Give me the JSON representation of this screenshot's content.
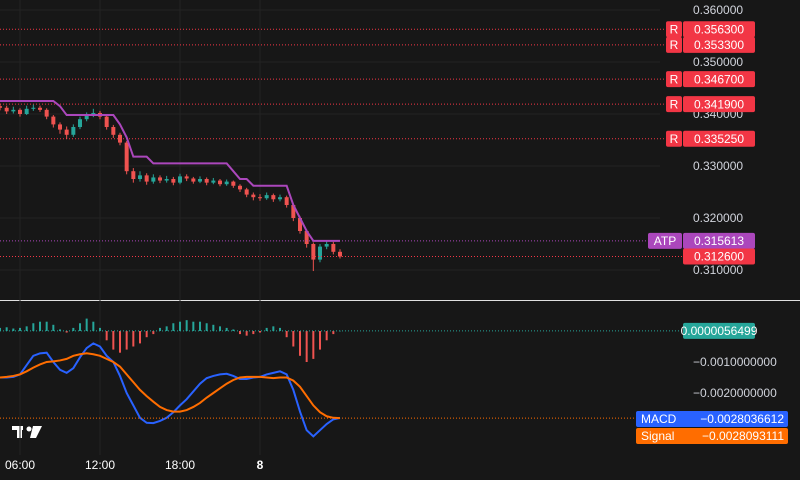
{
  "chart_data": [
    {
      "type": "candlestick",
      "open": [
        0.3415,
        0.3412,
        0.3405,
        0.3408,
        0.34,
        0.341,
        0.3412,
        0.3408,
        0.3395,
        0.338,
        0.337,
        0.336,
        0.3375,
        0.339,
        0.3398,
        0.3402,
        0.3395,
        0.3375,
        0.336,
        0.3345,
        0.329,
        0.3275,
        0.3282,
        0.327,
        0.3278,
        0.3272,
        0.3275,
        0.3268,
        0.328,
        0.3276,
        0.327,
        0.3275,
        0.3268,
        0.3272,
        0.3265,
        0.327,
        0.3262,
        0.3255,
        0.3245,
        0.324,
        0.3238,
        0.3244,
        0.3236,
        0.324,
        0.3225,
        0.32,
        0.3175,
        0.315,
        0.312,
        0.3145,
        0.315,
        0.3135
      ],
      "high": [
        0.342,
        0.3416,
        0.3414,
        0.3411,
        0.3416,
        0.3418,
        0.3416,
        0.3411,
        0.3398,
        0.3384,
        0.3376,
        0.338,
        0.3395,
        0.3403,
        0.341,
        0.3406,
        0.3398,
        0.3379,
        0.3364,
        0.3348,
        0.3296,
        0.329,
        0.3286,
        0.3284,
        0.3282,
        0.3281,
        0.3279,
        0.3285,
        0.3284,
        0.3279,
        0.328,
        0.3278,
        0.3277,
        0.3275,
        0.3274,
        0.3272,
        0.3265,
        0.3258,
        0.3249,
        0.3246,
        0.3249,
        0.3247,
        0.3245,
        0.3243,
        0.3228,
        0.3204,
        0.3178,
        0.3153,
        0.315,
        0.3156,
        0.3154,
        0.314
      ],
      "low": [
        0.3407,
        0.34,
        0.3401,
        0.3395,
        0.3398,
        0.3406,
        0.3404,
        0.339,
        0.3374,
        0.3362,
        0.3352,
        0.3356,
        0.3371,
        0.3386,
        0.3394,
        0.339,
        0.337,
        0.3354,
        0.334,
        0.3284,
        0.3268,
        0.327,
        0.3264,
        0.3266,
        0.3267,
        0.3268,
        0.3263,
        0.3265,
        0.3271,
        0.3266,
        0.3267,
        0.3263,
        0.3265,
        0.3261,
        0.3262,
        0.3258,
        0.325,
        0.324,
        0.3234,
        0.3233,
        0.3235,
        0.3231,
        0.3232,
        0.322,
        0.3194,
        0.317,
        0.3143,
        0.3098,
        0.3115,
        0.314,
        0.313,
        0.3122
      ],
      "close": [
        0.3412,
        0.3405,
        0.3408,
        0.34,
        0.341,
        0.3412,
        0.3408,
        0.3395,
        0.338,
        0.337,
        0.336,
        0.3375,
        0.339,
        0.3398,
        0.3402,
        0.3395,
        0.3375,
        0.336,
        0.3345,
        0.329,
        0.3275,
        0.3282,
        0.327,
        0.3278,
        0.3272,
        0.3275,
        0.3268,
        0.328,
        0.3276,
        0.327,
        0.3275,
        0.3268,
        0.3272,
        0.3265,
        0.327,
        0.3262,
        0.3255,
        0.3245,
        0.324,
        0.3238,
        0.3244,
        0.3236,
        0.324,
        0.3225,
        0.32,
        0.3175,
        0.315,
        0.312,
        0.3145,
        0.315,
        0.3135,
        0.3126
      ],
      "up_color": "#26a69a",
      "down_color": "#ef5350",
      "last_label": "0.312600",
      "last_color": "#f23645",
      "xlim": [
        0,
        96
      ],
      "xticks": [
        {
          "value": 3,
          "label": "06:00"
        },
        {
          "value": 15,
          "label": "12:00"
        },
        {
          "value": 27,
          "label": "18:00"
        },
        {
          "value": 39,
          "label": "8"
        }
      ],
      "ylim": [
        0.304231,
        0.361923
      ],
      "yticks": [
        {
          "value": 0.36,
          "label": "0.360000"
        },
        {
          "value": 0.35,
          "label": "0.350000"
        },
        {
          "value": 0.34,
          "label": "0.340000"
        },
        {
          "value": 0.33,
          "label": "0.330000"
        },
        {
          "value": 0.32,
          "label": "0.320000"
        },
        {
          "value": 0.31,
          "label": "0.310000"
        }
      ],
      "grid": true,
      "series": [
        {
          "name": "ATP",
          "color": "#ab47bc",
          "values": [
            0.3425,
            0.3425,
            0.3425,
            0.3425,
            0.3425,
            0.3425,
            0.3425,
            0.3425,
            0.3425,
            0.3415,
            0.3398,
            0.3398,
            0.3398,
            0.3398,
            0.3398,
            0.3398,
            0.3398,
            0.3398,
            0.338,
            0.3355,
            0.3318,
            0.3318,
            0.3318,
            0.3305,
            0.3305,
            0.3305,
            0.3305,
            0.3305,
            0.3305,
            0.3305,
            0.3305,
            0.3305,
            0.3305,
            0.3305,
            0.3305,
            0.329,
            0.3275,
            0.3275,
            0.3262,
            0.3262,
            0.3262,
            0.3262,
            0.3262,
            0.3262,
            0.3225,
            0.32,
            0.3175,
            0.315613,
            0.315613,
            0.315613,
            0.315613,
            0.315613
          ],
          "last_label": "0.315613"
        }
      ],
      "levels": {
        "tag": "R",
        "color": "#f23645",
        "values": [
          0.3563,
          0.3533,
          0.3467,
          0.3419,
          0.33525
        ],
        "value_labels": [
          "0.356300",
          "0.353300",
          "0.346700",
          "0.341900",
          "0.335250"
        ]
      }
    },
    {
      "type": "macd",
      "ylim": [
        -0.004,
        0.001
      ],
      "yticks": [
        {
          "value": -0.001,
          "label": "−0.0010000000"
        },
        {
          "value": -0.002,
          "label": "−0.0020000000"
        }
      ],
      "histogram": {
        "up_color": "#26a69a",
        "down_color": "#ef5350",
        "values": [
          0.0001,
          0.00012,
          8e-05,
          0.0001,
          0.00015,
          0.00025,
          0.0003,
          0.0003,
          0.0002,
          5e-05,
          -5e-05,
          0.0001,
          0.00025,
          0.0004,
          0.0003,
          0.0001,
          -0.0003,
          -0.0006,
          -0.0007,
          -0.0006,
          -0.0005,
          -0.0004,
          -0.0002,
          -0.0001,
          0.0001,
          0.00015,
          0.00025,
          0.0003,
          0.00035,
          0.0003,
          0.0003,
          0.00025,
          0.0002,
          0.00015,
          0.0001,
          5e-05,
          -0.0001,
          -0.00015,
          -0.0001,
          -5e-05,
          0.0001,
          0.00015,
          0.0001,
          -0.0002,
          -0.0005,
          -0.0008,
          -0.001,
          -0.0009,
          -0.0006,
          -0.0003,
          -0.0001,
          5.6499e-06
        ],
        "last_label": "0.0000056499"
      },
      "series": [
        {
          "name": "MACD",
          "color": "#2962ff",
          "values": [
            -0.0015,
            -0.0015,
            -0.00148,
            -0.0014,
            -0.0011,
            -0.0008,
            -0.00072,
            -0.0007,
            -0.001,
            -0.00125,
            -0.00135,
            -0.0012,
            -0.00085,
            -0.00055,
            -0.0004,
            -0.0005,
            -0.0008,
            -0.001,
            -0.00145,
            -0.002,
            -0.0024,
            -0.0028,
            -0.00296,
            -0.00297,
            -0.0029,
            -0.0028,
            -0.00262,
            -0.0024,
            -0.0022,
            -0.00195,
            -0.0017,
            -0.00152,
            -0.00145,
            -0.0014,
            -0.00138,
            -0.00145,
            -0.00155,
            -0.00155,
            -0.0015,
            -0.00148,
            -0.0014,
            -0.00135,
            -0.0013,
            -0.0014,
            -0.0019,
            -0.0026,
            -0.0032,
            -0.0034,
            -0.0032,
            -0.003,
            -0.00285,
            -0.0028036612
          ],
          "last_label": "−0.0028036612"
        },
        {
          "name": "Signal",
          "color": "#ff6d00",
          "values": [
            -0.0015,
            -0.00148,
            -0.00145,
            -0.0014,
            -0.0013,
            -0.00118,
            -0.00108,
            -0.001,
            -0.00098,
            -0.00095,
            -0.0009,
            -0.0008,
            -0.00075,
            -0.00072,
            -0.00075,
            -0.0008,
            -0.0009,
            -0.001,
            -0.00115,
            -0.0014,
            -0.00165,
            -0.0019,
            -0.0021,
            -0.00228,
            -0.00245,
            -0.00255,
            -0.0026,
            -0.0026,
            -0.00255,
            -0.00245,
            -0.00232,
            -0.00215,
            -0.002,
            -0.00185,
            -0.0017,
            -0.00158,
            -0.0015,
            -0.00148,
            -0.00148,
            -0.00148,
            -0.0015,
            -0.00152,
            -0.0015,
            -0.0015,
            -0.0016,
            -0.0018,
            -0.0021,
            -0.0024,
            -0.00262,
            -0.00275,
            -0.0028,
            -0.0028093111
          ],
          "last_label": "−0.0028093111"
        }
      ]
    }
  ]
}
